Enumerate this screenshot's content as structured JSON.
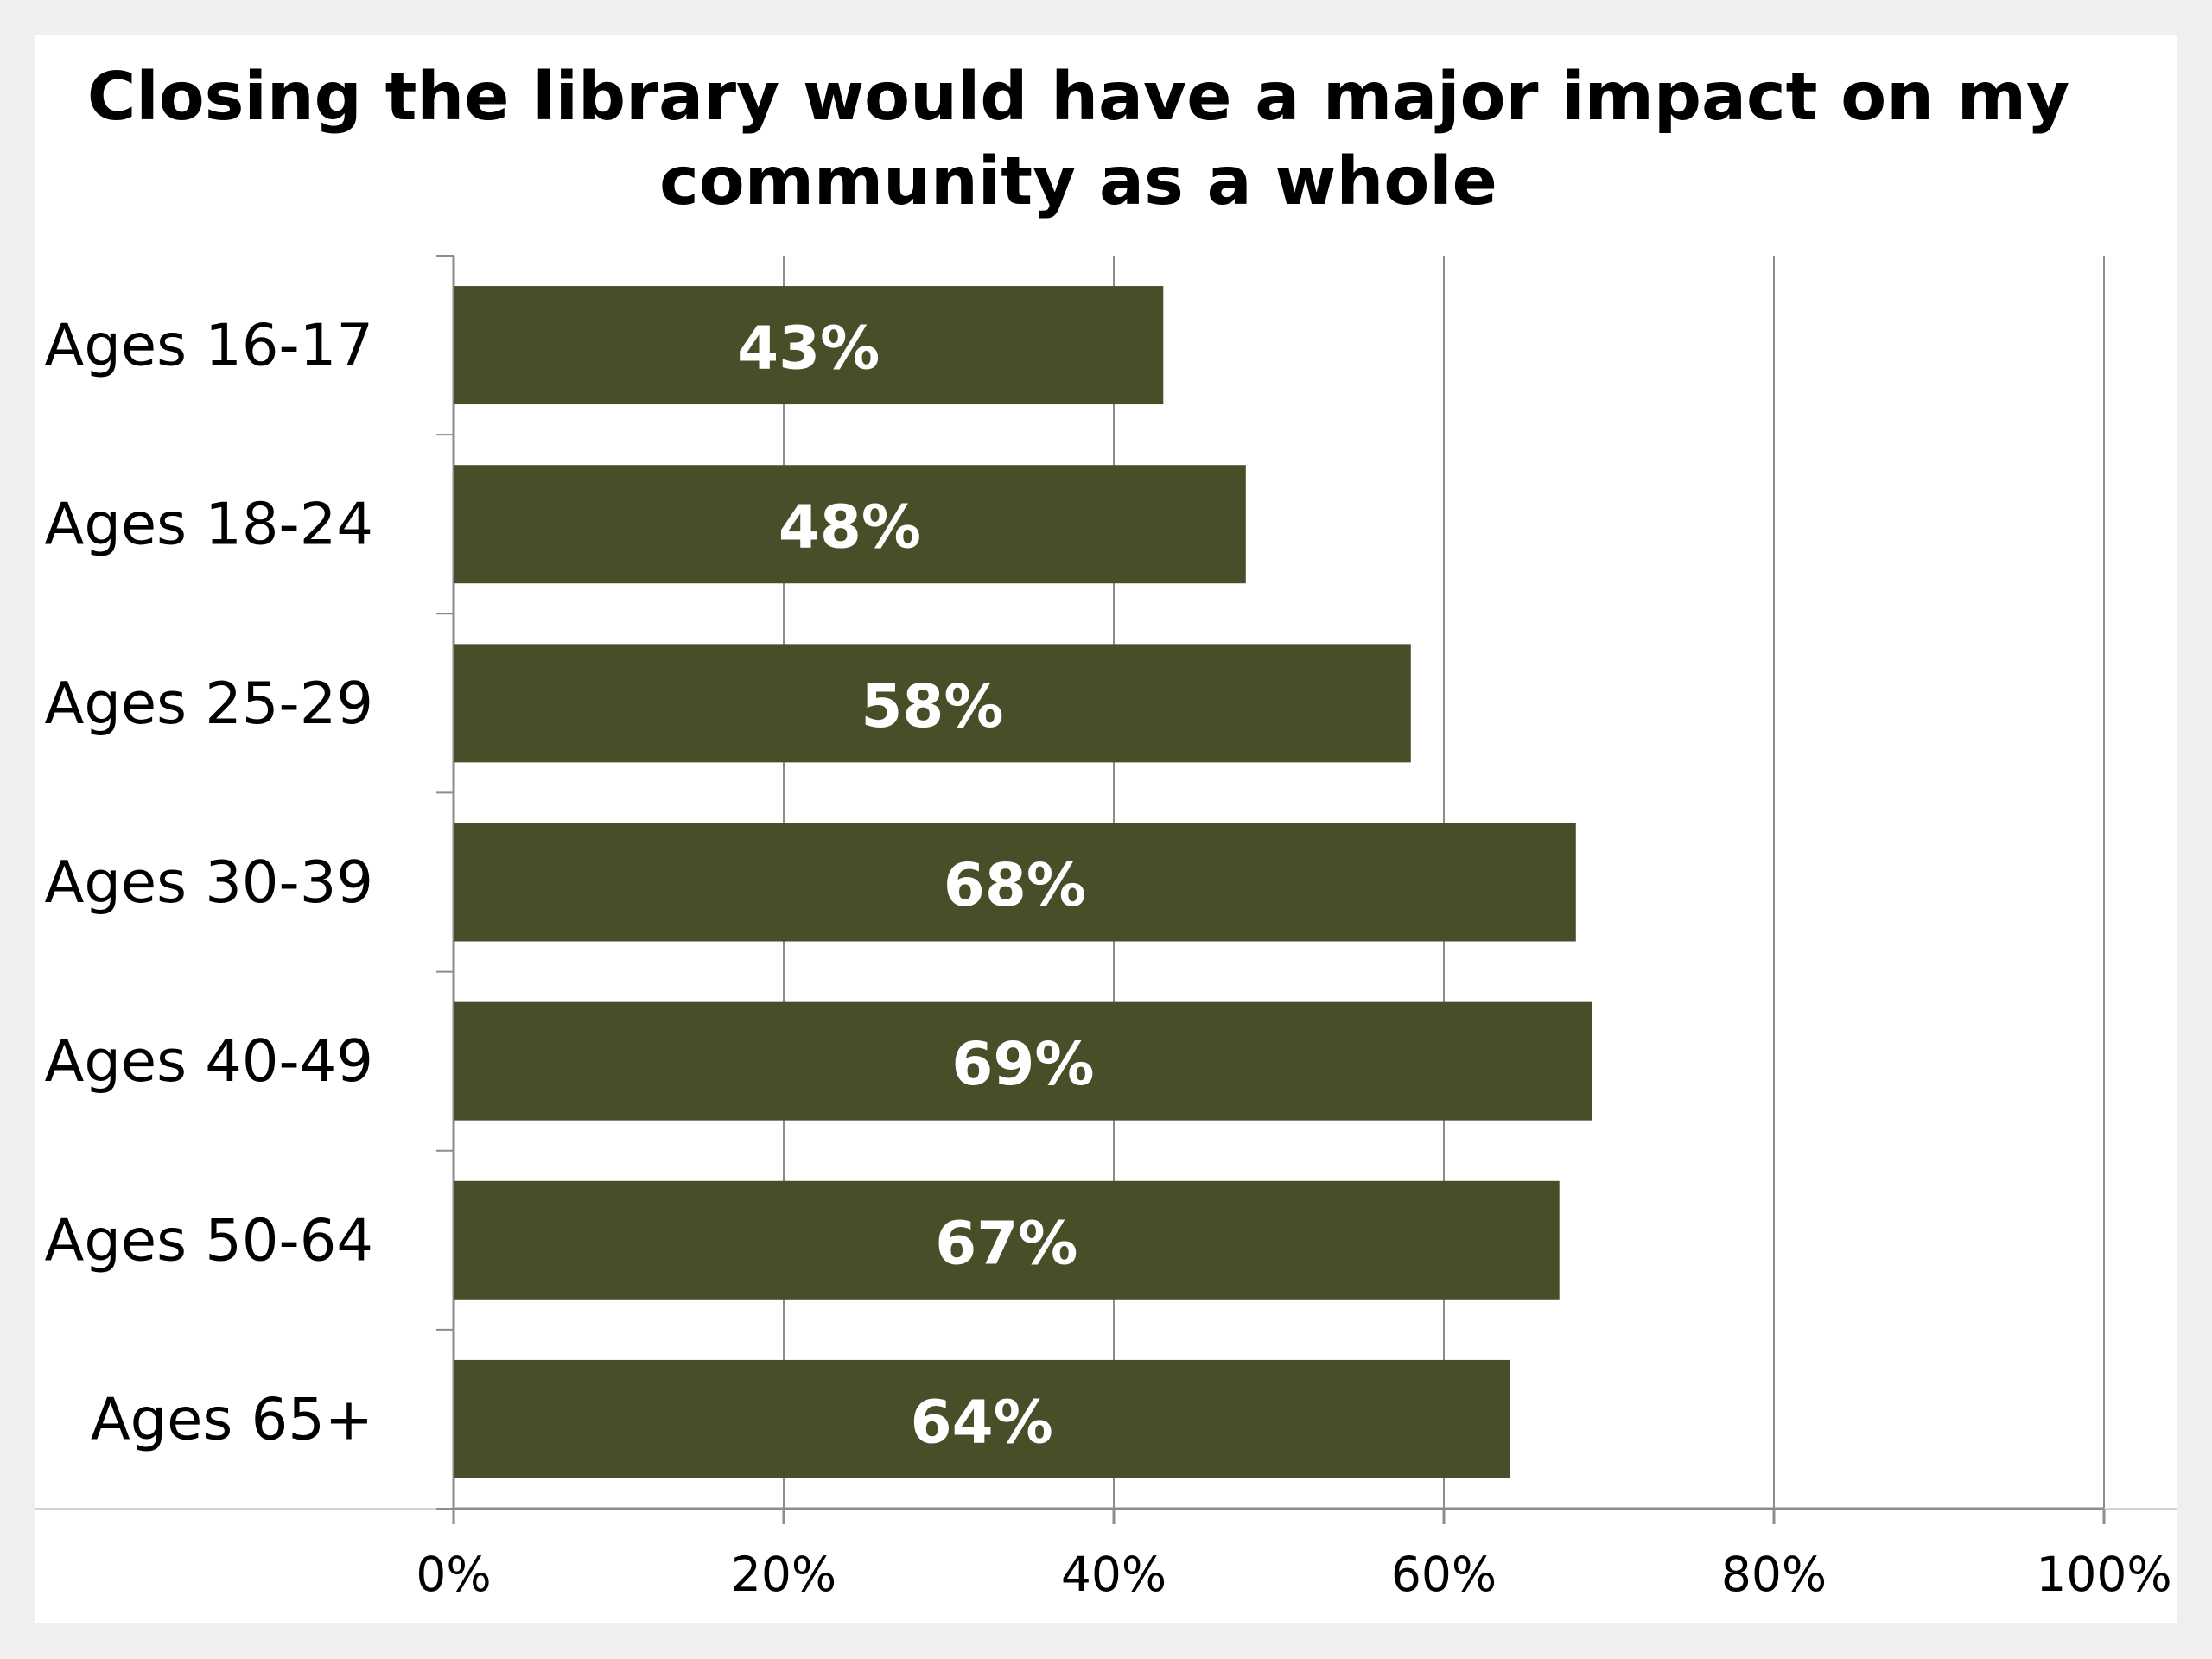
{
  "chart_data": {
    "type": "bar",
    "orientation": "horizontal",
    "title": "Closing the library would have a major impact on my community as a whole",
    "xlabel": "",
    "ylabel": "",
    "categories": [
      "Ages 16-17",
      "Ages 18-24",
      "Ages 25-29",
      "Ages 30-39",
      "Ages 40-49",
      "Ages 50-64",
      "Ages 65+"
    ],
    "values": [
      43,
      48,
      58,
      68,
      69,
      67,
      64
    ],
    "value_labels": [
      "43%",
      "48%",
      "58%",
      "68%",
      "69%",
      "67%",
      "64%"
    ],
    "xlim": [
      0,
      100
    ],
    "x_ticks": [
      0,
      20,
      40,
      60,
      80,
      100
    ],
    "x_tick_labels": [
      "0%",
      "20%",
      "40%",
      "60%",
      "80%",
      "100%"
    ],
    "grid": "vertical",
    "legend": "none",
    "colors": {
      "bar": "#4a4e28",
      "grid": "#8c8c8c",
      "data_label": "#ffffff",
      "background": "#ffffff",
      "frame": "#efefef"
    }
  }
}
